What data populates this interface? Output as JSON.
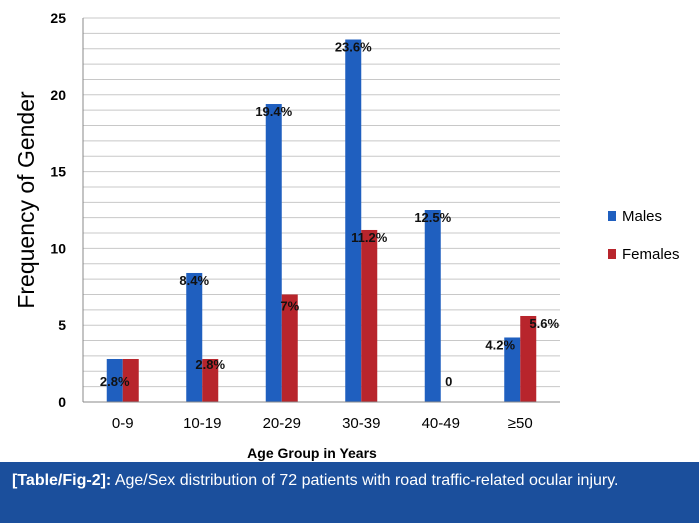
{
  "chart_data": {
    "type": "bar",
    "title": "",
    "xlabel": "Age Group in Years",
    "ylabel": "Frequency of Gender",
    "ylim": [
      0,
      25
    ],
    "yticks": [
      0,
      5,
      10,
      15,
      20,
      25
    ],
    "grid": true,
    "legend_position": "right",
    "categories": [
      "0-9",
      "10-19",
      "20-29",
      "30-39",
      "40-49",
      "≥50"
    ],
    "series": [
      {
        "name": "Males",
        "color": "#1f5fbf",
        "values": [
          2.8,
          8.4,
          19.4,
          23.6,
          12.5,
          4.2
        ],
        "labels": [
          "2.8%",
          "8.4%",
          "19.4%",
          "23.6%",
          "12.5%",
          "4.2%"
        ]
      },
      {
        "name": "Females",
        "color": "#b8252c",
        "values": [
          2.8,
          2.8,
          7,
          11.2,
          0,
          5.6
        ],
        "labels": [
          "",
          "2.8%",
          "7%",
          "11.2%",
          "0",
          "5.6%"
        ]
      }
    ]
  },
  "caption": {
    "label": "[Table/Fig-2]:",
    "text": "Age/Sex distribution of 72 patients with road traffic-related ocular injury."
  }
}
